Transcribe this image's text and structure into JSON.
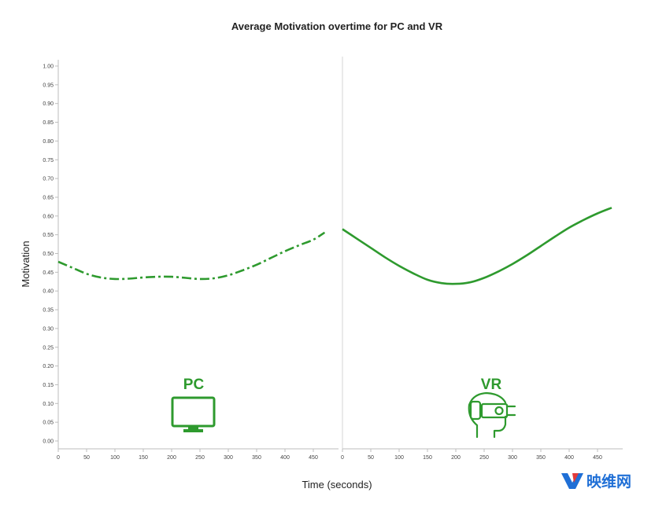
{
  "chart_data": {
    "type": "line",
    "title": "Average Motivation overtime for PC and VR",
    "xlabel": "Time (seconds)",
    "ylabel": "Motivation",
    "ylim": [
      0,
      1
    ],
    "yticks": [
      "0.00",
      "0.05",
      "0.10",
      "0.15",
      "0.20",
      "0.25",
      "0.30",
      "0.35",
      "0.40",
      "0.45",
      "0.50",
      "0.55",
      "0.60",
      "0.65",
      "0.70",
      "0.75",
      "0.80",
      "0.85",
      "0.90",
      "0.95",
      "1.00"
    ],
    "grid": false,
    "panels": [
      {
        "label": "PC",
        "icon": "monitor-icon",
        "xlim": [
          0,
          500
        ],
        "xticks": [
          "0",
          "50",
          "100",
          "150",
          "200",
          "250",
          "300",
          "350",
          "400",
          "450"
        ],
        "series": [
          {
            "style": "dash-dot",
            "color": "#2e9a2e",
            "x": [
              0,
              25,
              50,
              75,
              100,
              125,
              150,
              175,
              200,
              225,
              250,
              275,
              300,
              325,
              350,
              375,
              400,
              425,
              450,
              470
            ],
            "y": [
              0.478,
              0.462,
              0.446,
              0.436,
              0.432,
              0.433,
              0.436,
              0.438,
              0.438,
              0.435,
              0.432,
              0.434,
              0.442,
              0.455,
              0.47,
              0.488,
              0.506,
              0.522,
              0.537,
              0.556
            ]
          }
        ]
      },
      {
        "label": "VR",
        "icon": "vr-headset-icon",
        "xlim": [
          0,
          500
        ],
        "xticks": [
          "0",
          "50",
          "100",
          "150",
          "200",
          "250",
          "300",
          "350",
          "400",
          "450"
        ],
        "series": [
          {
            "style": "solid",
            "color": "#2e9a2e",
            "x": [
              0,
              25,
              50,
              75,
              100,
              125,
              150,
              175,
              200,
              225,
              250,
              275,
              300,
              325,
              350,
              375,
              400,
              425,
              450,
              475
            ],
            "y": [
              0.565,
              0.54,
              0.515,
              0.49,
              0.467,
              0.447,
              0.43,
              0.421,
              0.419,
              0.423,
              0.435,
              0.452,
              0.472,
              0.495,
              0.52,
              0.545,
              0.569,
              0.589,
              0.607,
              0.622
            ]
          }
        ]
      }
    ]
  },
  "watermark": {
    "logo": "yivian-logo",
    "text": "映维网",
    "color": "#1f6fd6"
  }
}
